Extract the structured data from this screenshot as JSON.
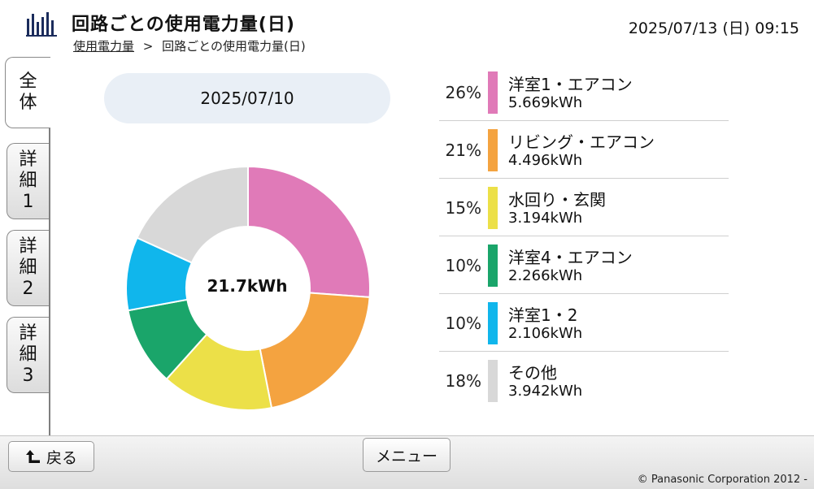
{
  "header": {
    "title": "回路ごとの使用電力量(日)",
    "breadcrumb": {
      "link": "使用電力量",
      "separator": ">",
      "current": "回路ごとの使用電力量(日)"
    },
    "datetime": "2025/07/13 (日) 09:15"
  },
  "tabs": [
    {
      "line1": "全",
      "line2": "体",
      "line3": ""
    },
    {
      "line1": "詳",
      "line2": "細",
      "line3": "1"
    },
    {
      "line1": "詳",
      "line2": "細",
      "line3": "2"
    },
    {
      "line1": "詳",
      "line2": "細",
      "line3": "3"
    }
  ],
  "date_selector": "2025/07/10",
  "total": "21.7kWh",
  "chart_data": {
    "type": "pie",
    "categories": [
      "洋室1・エアコン",
      "リビング・エアコン",
      "水回り・玄関",
      "洋室4・エアコン",
      "洋室1・2",
      "その他"
    ],
    "values": [
      5.669,
      4.496,
      3.194,
      2.266,
      2.106,
      3.942
    ],
    "percent": [
      26,
      21,
      15,
      10,
      10,
      18
    ],
    "colors": [
      "#e07ab8",
      "#f4a340",
      "#ece048",
      "#1aa56a",
      "#10b6ec",
      "#d8d8d8"
    ]
  },
  "legend": [
    {
      "pct": "26%",
      "name": "洋室1・エアコン",
      "value": "5.669kWh",
      "color": "#e07ab8"
    },
    {
      "pct": "21%",
      "name": "リビング・エアコン",
      "value": "4.496kWh",
      "color": "#f4a340"
    },
    {
      "pct": "15%",
      "name": "水回り・玄関",
      "value": "3.194kWh",
      "color": "#ece048"
    },
    {
      "pct": "10%",
      "name": "洋室4・エアコン",
      "value": "2.266kWh",
      "color": "#1aa56a"
    },
    {
      "pct": "10%",
      "name": "洋室1・2",
      "value": "2.106kWh",
      "color": "#10b6ec"
    },
    {
      "pct": "18%",
      "name": "その他",
      "value": "3.942kWh",
      "color": "#d8d8d8"
    }
  ],
  "footer": {
    "back_label": "戻る",
    "menu_label": "メニュー",
    "copyright": "© Panasonic Corporation 2012 -"
  },
  "icons": {
    "app": "bar-chart-icon",
    "back": "return-arrow-icon"
  }
}
